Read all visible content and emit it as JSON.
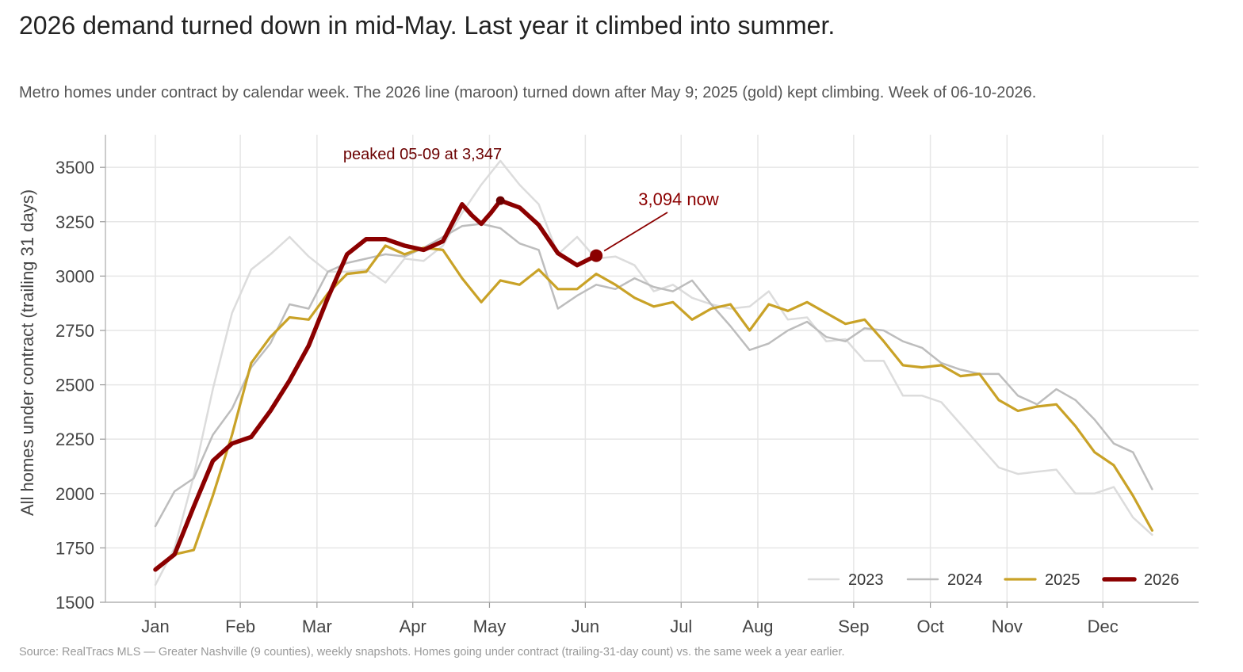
{
  "header": {
    "title": "2026 demand turned down in mid-May. Last year it climbed into summer.",
    "subtitle": "Metro homes under contract by calendar week. The 2026 line (maroon) turned down after May 9; 2025 (gold) kept climbing. Week of 06-10-2026."
  },
  "footer": {
    "source": "Source: RealTracs MLS — Greater Nashville (9 counties), weekly snapshots. Homes going under contract (trailing-31-day count) vs. the same week a year earlier."
  },
  "chart_data": {
    "type": "line",
    "title": "2026 demand turned down in mid-May. Last year it climbed into summer.",
    "subtitle": "Metro homes under contract by calendar week. The 2026 line (maroon) turned down after May 9; 2025 (gold) kept climbing. Week of 06-10-2026.",
    "ylabel": "All homes under contract (trailing 31 days)",
    "xlabel": "",
    "x_unit": "week of year",
    "x_range": [
      1,
      53
    ],
    "ylim": [
      1500,
      3650
    ],
    "y_ticks": [
      1500,
      1750,
      2000,
      2250,
      2500,
      2750,
      3000,
      3250,
      3500
    ],
    "x_ticks": [
      {
        "label": "Jan",
        "week": 1
      },
      {
        "label": "Feb",
        "week": 5.43
      },
      {
        "label": "Mar",
        "week": 9.43
      },
      {
        "label": "Apr",
        "week": 14.43
      },
      {
        "label": "May",
        "week": 18.43
      },
      {
        "label": "Jun",
        "week": 23.43
      },
      {
        "label": "Jul",
        "week": 28.43
      },
      {
        "label": "Aug",
        "week": 32.43
      },
      {
        "label": "Sep",
        "week": 37.43
      },
      {
        "label": "Oct",
        "week": 41.43
      },
      {
        "label": "Nov",
        "week": 45.43
      },
      {
        "label": "Dec",
        "week": 50.43
      }
    ],
    "grid": true,
    "legend_position": "bottom-right",
    "series": [
      {
        "name": "2023",
        "color": "#dcdcdc",
        "width": 2.5,
        "x": [
          1,
          2,
          3,
          4,
          5,
          6,
          7,
          8,
          9,
          10,
          11,
          12,
          13,
          14,
          15,
          16,
          17,
          18,
          19,
          20,
          21,
          22,
          23,
          24,
          25,
          26,
          27,
          28,
          29,
          30,
          31,
          32,
          33,
          34,
          35,
          36,
          37,
          38,
          39,
          40,
          41,
          42,
          43,
          44,
          45,
          46,
          47,
          48,
          49,
          50,
          51,
          52,
          53
        ],
        "values": [
          1580,
          1750,
          2080,
          2480,
          2830,
          3030,
          3100,
          3180,
          3090,
          3020,
          3020,
          3030,
          2970,
          3080,
          3070,
          3140,
          3290,
          3420,
          3530,
          3420,
          3330,
          3100,
          3180,
          3080,
          3090,
          3050,
          2930,
          2960,
          2900,
          2870,
          2850,
          2860,
          2930,
          2800,
          2810,
          2700,
          2710,
          2610,
          2610,
          2450,
          2450,
          2420,
          2320,
          2220,
          2120,
          2090,
          2100,
          2110,
          2000,
          2000,
          2030,
          1890,
          1810
        ]
      },
      {
        "name": "2024",
        "color": "#bdbdbd",
        "width": 2.5,
        "x": [
          1,
          2,
          3,
          4,
          5,
          6,
          7,
          8,
          9,
          10,
          11,
          12,
          13,
          14,
          15,
          16,
          17,
          18,
          19,
          20,
          21,
          22,
          23,
          24,
          25,
          26,
          27,
          28,
          29,
          30,
          31,
          32,
          33,
          34,
          35,
          36,
          37,
          38,
          39,
          40,
          41,
          42,
          43,
          44,
          45,
          46,
          47,
          48,
          49,
          50,
          51,
          52,
          53
        ],
        "values": [
          1850,
          2010,
          2070,
          2270,
          2390,
          2580,
          2690,
          2870,
          2850,
          3020,
          3060,
          3080,
          3100,
          3090,
          3130,
          3180,
          3230,
          3240,
          3220,
          3150,
          3120,
          2850,
          2910,
          2960,
          2940,
          2990,
          2950,
          2930,
          2980,
          2870,
          2770,
          2660,
          2690,
          2750,
          2790,
          2720,
          2700,
          2760,
          2750,
          2700,
          2670,
          2600,
          2570,
          2550,
          2550,
          2450,
          2410,
          2480,
          2430,
          2340,
          2230,
          2190,
          2020
        ]
      },
      {
        "name": "2025",
        "color": "#c9a227",
        "width": 3.2,
        "x": [
          1,
          2,
          3,
          4,
          5,
          6,
          7,
          8,
          9,
          10,
          11,
          12,
          13,
          14,
          15,
          16,
          17,
          18,
          19,
          20,
          21,
          22,
          23,
          24,
          25,
          26,
          27,
          28,
          29,
          30,
          31,
          32,
          33,
          34,
          35,
          36,
          37,
          38,
          39,
          40,
          41,
          42,
          43,
          44,
          45,
          46,
          47,
          48,
          49,
          50,
          51,
          52,
          53
        ],
        "values": [
          1650,
          1720,
          1740,
          1990,
          2270,
          2600,
          2720,
          2810,
          2800,
          2920,
          3010,
          3020,
          3140,
          3100,
          3130,
          3120,
          2990,
          2880,
          2980,
          2960,
          3030,
          2940,
          2940,
          3010,
          2960,
          2900,
          2860,
          2880,
          2800,
          2850,
          2870,
          2750,
          2870,
          2840,
          2880,
          2830,
          2780,
          2800,
          2700,
          2590,
          2580,
          2590,
          2540,
          2550,
          2430,
          2380,
          2400,
          2410,
          2310,
          2190,
          2130,
          1990,
          1830
        ]
      },
      {
        "name": "2026",
        "color": "#8b0000",
        "width": 5.5,
        "x": [
          1,
          2,
          3,
          4,
          5,
          6,
          7,
          8,
          9,
          10,
          11,
          12,
          13,
          14,
          15,
          16,
          17,
          17.5,
          18,
          18.5,
          19,
          20,
          21,
          22,
          23,
          24
        ],
        "values": [
          1650,
          1720,
          1940,
          2150,
          2230,
          2260,
          2380,
          2520,
          2680,
          2900,
          3100,
          3170,
          3170,
          3140,
          3120,
          3160,
          3330,
          3280,
          3240,
          3290,
          3347,
          3315,
          3235,
          3105,
          3050,
          3094
        ]
      }
    ],
    "annotations": [
      {
        "text": "peaked 05-09 at 3,347",
        "x": 19,
        "y": 3347
      },
      {
        "text": "3,094 now",
        "x": 24,
        "y": 3094
      }
    ]
  }
}
